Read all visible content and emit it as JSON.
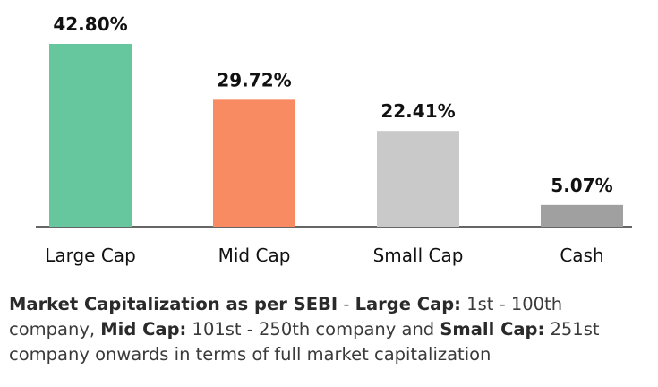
{
  "chart_data": {
    "type": "bar",
    "categories": [
      "Large Cap",
      "Mid Cap",
      "Small Cap",
      "Cash"
    ],
    "values": [
      42.8,
      29.72,
      22.41,
      5.07
    ],
    "value_labels": [
      "42.80%",
      "29.72%",
      "22.41%",
      "5.07%"
    ],
    "colors": [
      "#66c69e",
      "#f98b62",
      "#c9c9c9",
      "#a0a0a0"
    ],
    "ylim": [
      0,
      42.8
    ],
    "grid": false,
    "legend": "none",
    "xlabel": "",
    "ylabel": ""
  },
  "footnote": {
    "title": "Market Capitalization as per SEBI",
    "sep1": " - ",
    "large_label": "Large Cap:",
    "large_text": " 1st - 100th company, ",
    "mid_label": "Mid Cap:",
    "mid_text": " 101st - 250th company and ",
    "small_label": "Small Cap:",
    "small_text": " 251st company onwards in terms of full market capitalization"
  }
}
